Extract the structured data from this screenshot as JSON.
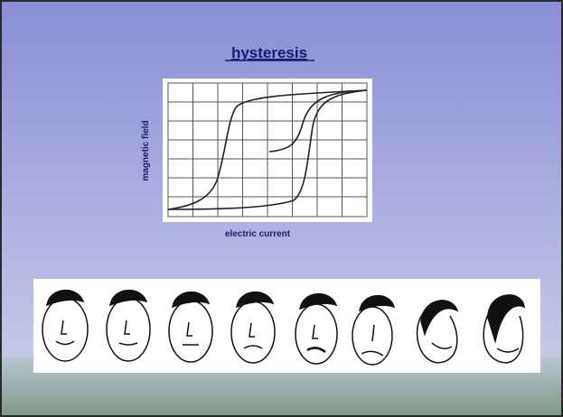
{
  "title": "hysteresis",
  "graph": {
    "y_label": "magnetic field",
    "x_label": "electric current"
  }
}
